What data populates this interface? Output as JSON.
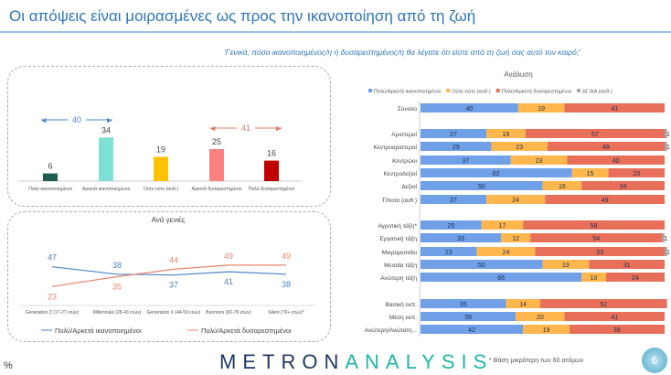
{
  "header": {
    "title": "Οι απόψεις είναι μοιρασμένες ως προς την ικανοποίηση από τη ζωή",
    "question": "'Γενικά, πόσο ικανοποιημένος/η ή δυσαρεστημένος/η θα λέγατε ότι είστε από τη ζωή σας αυτό τον καιρό;'"
  },
  "footer": {
    "percent_sign": "%",
    "logo": "METRONANALYSIS",
    "note": "* Βάση μικρότερη των 60 ατόμων",
    "page": "6"
  },
  "chart_data": [
    {
      "type": "bar",
      "categories": [
        "Πολύ ικανοποιημένοι",
        "Αρκετά ικανοποιημένοι",
        "Ούτε-ούτε (αυθ.)",
        "Αρκετά δυσαρεστημένοι",
        "Πολύ δυσαρεστημένοι"
      ],
      "values": [
        6,
        34,
        19,
        25,
        16
      ],
      "colors": [
        "#1e5c50",
        "#7fe0d5",
        "#ffc000",
        "#ff8080",
        "#c00000"
      ],
      "annotations": [
        {
          "label": "40",
          "color": "#4a86c8"
        },
        {
          "label": "41",
          "color": "#e07b6b"
        }
      ]
    },
    {
      "type": "line",
      "title": "Ανά γενιές",
      "categories": [
        "Generation Z (17-27 ετών)",
        "Millennials (28-43 ετών)",
        "Generation X (44-59 ετών)",
        "Boomers (60-78 ετών)",
        "Silent (79+ ετών)*"
      ],
      "series": [
        {
          "name": "Πολύ/Αρκετά ικανοποιημένοι",
          "values": [
            47,
            38,
            37,
            41,
            38
          ],
          "color": "#4a86c8"
        },
        {
          "name": "Πολύ/Αρκετά δυσαρεστημένοι",
          "values": [
            23,
            35,
            44,
            49,
            49
          ],
          "color": "#e8866f"
        }
      ]
    },
    {
      "type": "bar",
      "orientation": "horizontal",
      "stacked": true,
      "title": "Ανάλυση",
      "legend": "top",
      "series": [
        {
          "name": "Πολύ/Αρκετά ικανοποιημένοι",
          "color": "#6fa0e8"
        },
        {
          "name": "Ούτε-ούτε (αυθ.)",
          "color": "#ffb74d"
        },
        {
          "name": "Πολύ/Αρκετά δυσαρεστημένοι",
          "color": "#e8705a"
        },
        {
          "name": "ΔΓ/ΔΑ (αυθ.)",
          "color": "#a6a6a6"
        }
      ],
      "groups": [
        [
          {
            "label": "Σύνολο",
            "values": [
              40,
              19,
              41,
              0
            ]
          }
        ],
        [
          {
            "label": "Αριστεροί",
            "values": [
              27,
              16,
              57,
              1
            ]
          },
          {
            "label": "Κεντροαριστεροί",
            "values": [
              29,
              23,
              48,
              1
            ]
          },
          {
            "label": "Κεντρώοι",
            "values": [
              37,
              23,
              40,
              0
            ]
          },
          {
            "label": "Κεντροδεξιοί",
            "values": [
              62,
              15,
              23,
              0
            ]
          },
          {
            "label": "Δεξιοί",
            "values": [
              50,
              16,
              34,
              0
            ]
          },
          {
            "label": "Τίποτα (αυθ.)",
            "values": [
              27,
              24,
              49,
              0
            ]
          }
        ],
        [
          {
            "label": "Αγροτική τάξη*",
            "values": [
              25,
              17,
              58,
              0
            ]
          },
          {
            "label": "Εργατική τάξη",
            "values": [
              33,
              12,
              54,
              1
            ]
          },
          {
            "label": "Μικρομεσαίοι",
            "values": [
              23,
              24,
              53,
              1
            ]
          },
          {
            "label": "Μεσαία τάξη",
            "values": [
              50,
              19,
              31,
              0
            ]
          },
          {
            "label": "Ανώτερη τάξη",
            "values": [
              66,
              10,
              24,
              0
            ]
          }
        ],
        [
          {
            "label": "Βασική εκπ.",
            "values": [
              35,
              14,
              52,
              0
            ]
          },
          {
            "label": "Μέση εκπ.",
            "values": [
              39,
              20,
              41,
              0
            ]
          },
          {
            "label": "Ανώτερη/Ανώτατη...",
            "values": [
              42,
              19,
              39,
              0
            ]
          }
        ]
      ]
    }
  ]
}
